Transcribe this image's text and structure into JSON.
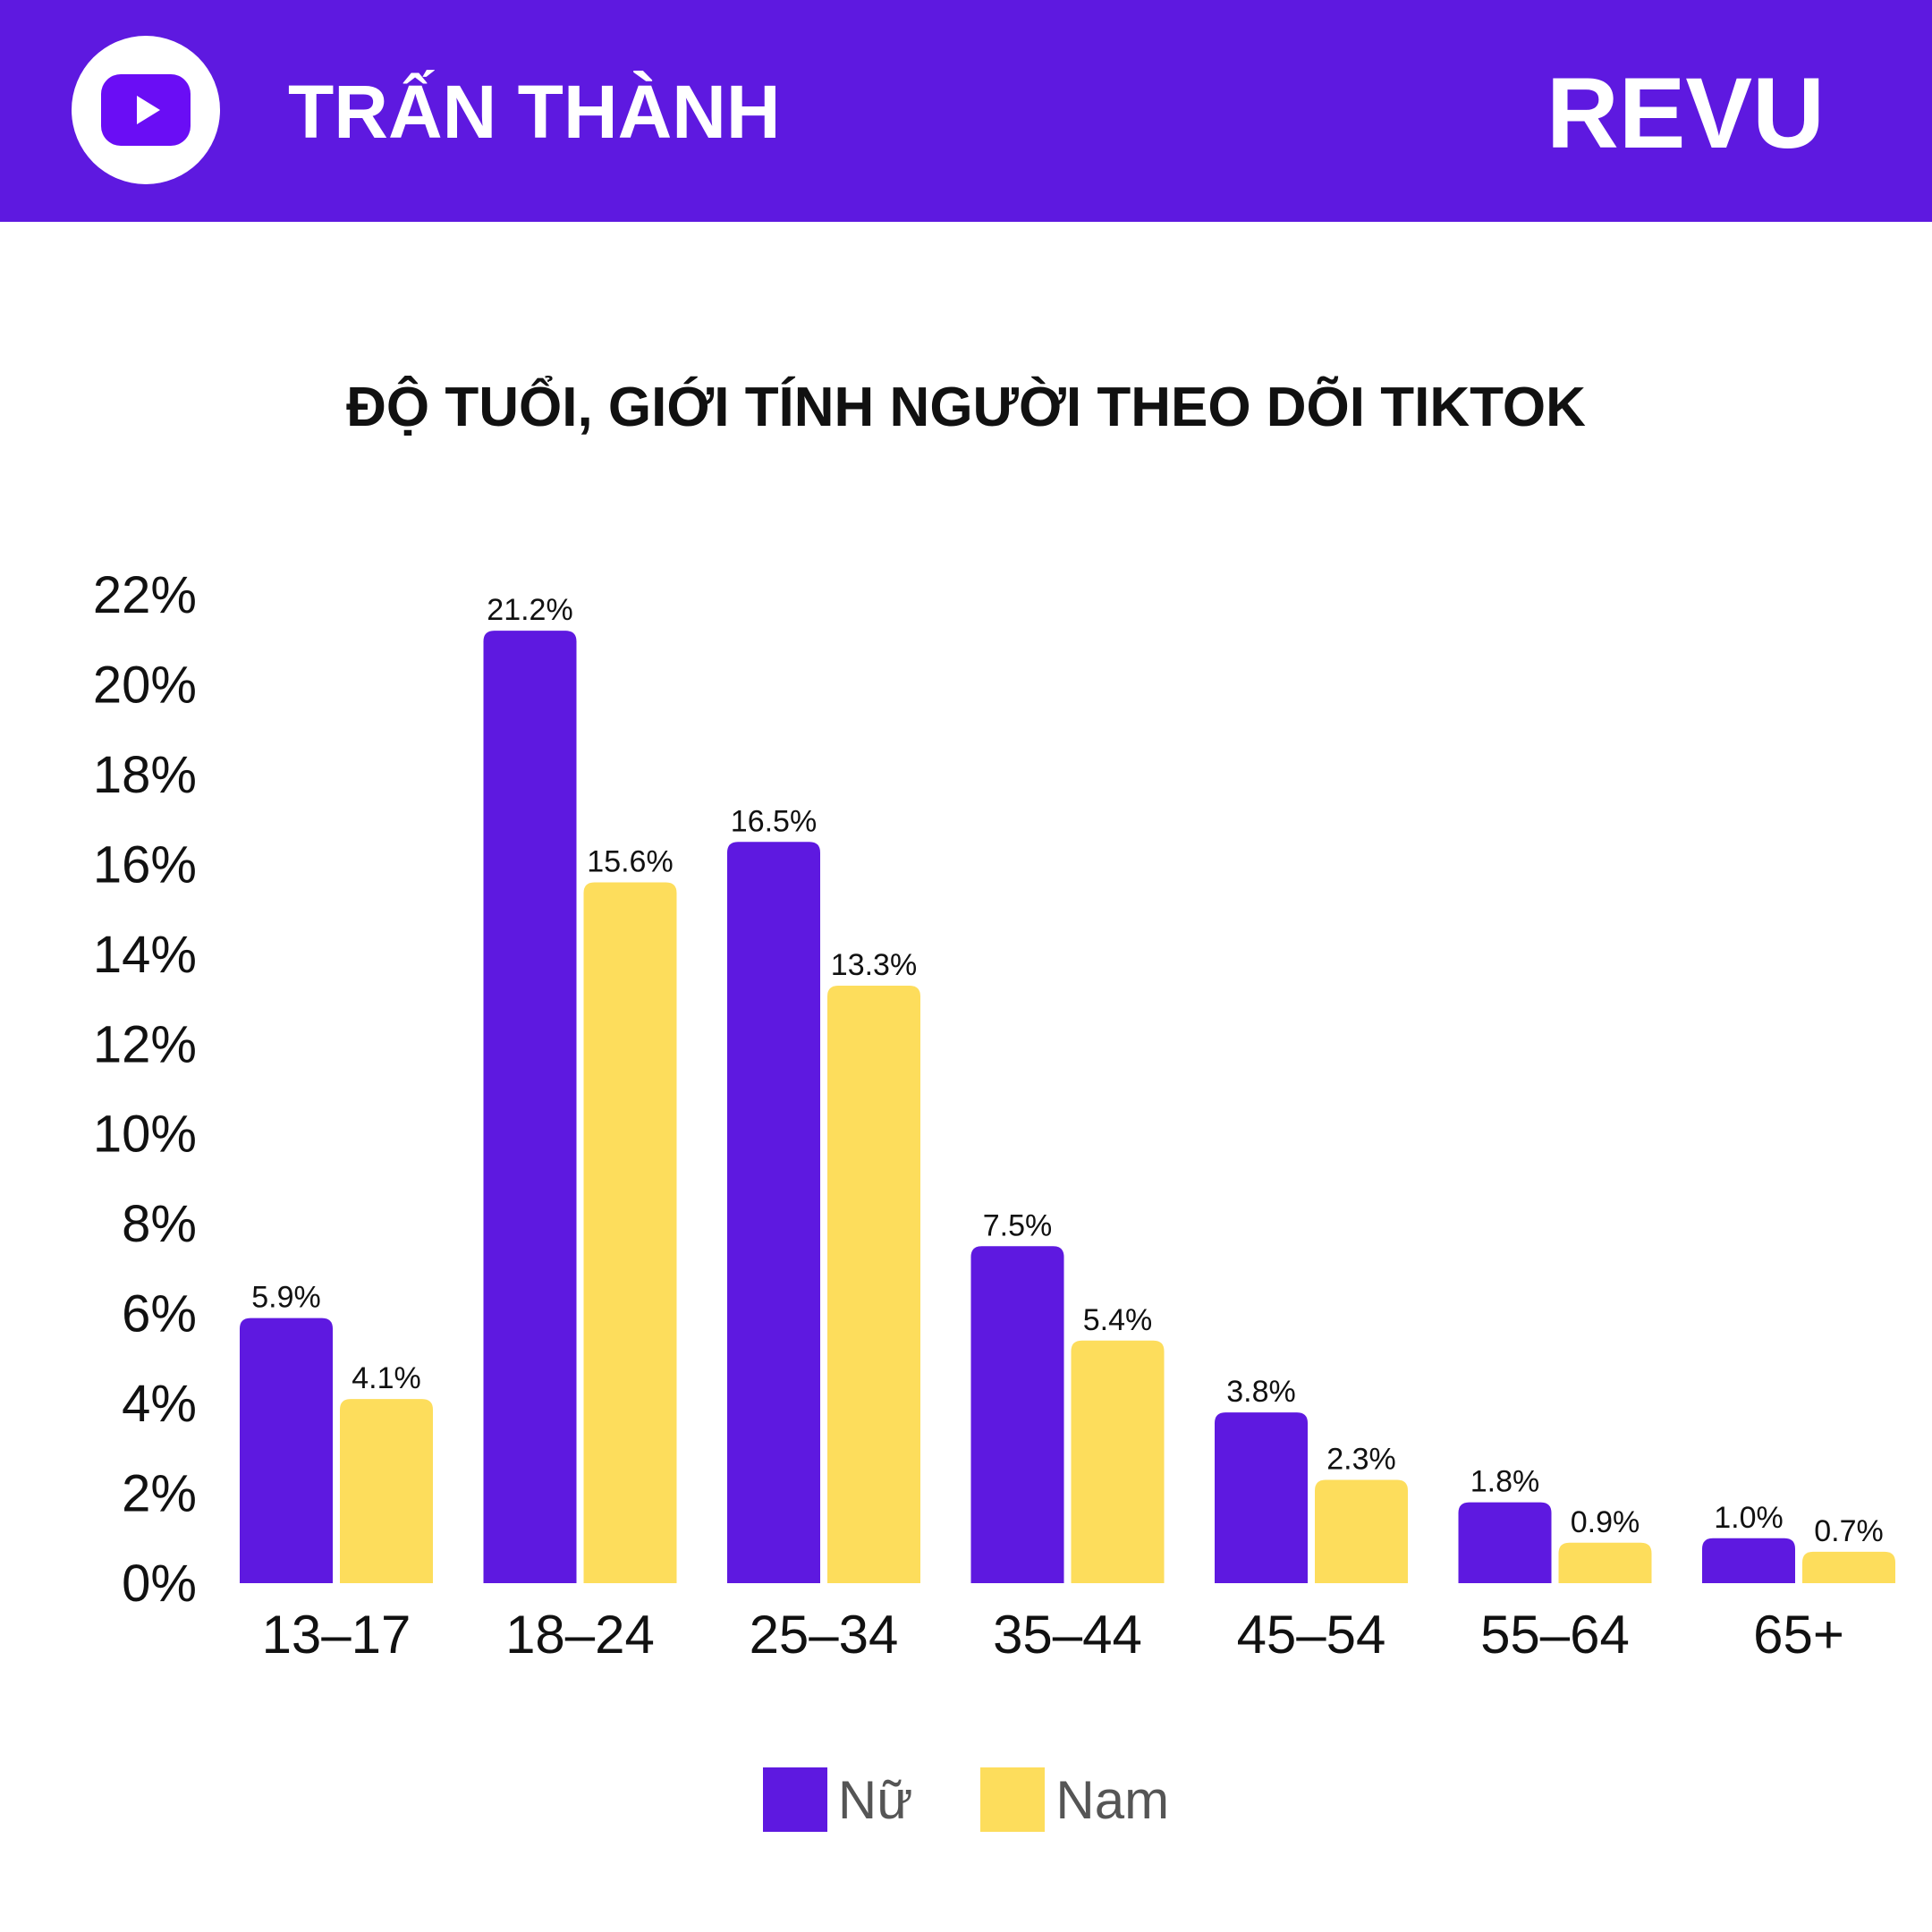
{
  "header": {
    "channel_name": "TRẤN THÀNH",
    "brand": "REVU",
    "icon": "youtube-icon"
  },
  "colors": {
    "header_bg": "#5e19e0",
    "nu": "#5e19e0",
    "nam": "#fddd5c"
  },
  "chart_data": {
    "type": "bar",
    "title": "ĐỘ TUỔI, GIỚI TÍNH NGƯỜI THEO DÕI TIKTOK",
    "categories": [
      "13–17",
      "18–24",
      "25–34",
      "35–44",
      "45–54",
      "55–64",
      "65+"
    ],
    "series": [
      {
        "name": "Nữ",
        "values": [
          5.9,
          21.2,
          16.5,
          7.5,
          3.8,
          1.8,
          1.0
        ],
        "labels": [
          "5.9%",
          "21.2%",
          "16.5%",
          "7.5%",
          "3.8%",
          "1.8%",
          "1.0%"
        ]
      },
      {
        "name": "Nam",
        "values": [
          4.1,
          15.6,
          13.3,
          5.4,
          2.3,
          0.9,
          0.7
        ],
        "labels": [
          "4.1%",
          "15.6%",
          "13.3%",
          "5.4%",
          "2.3%",
          "0.9%",
          "0.7%"
        ]
      }
    ],
    "ylim": [
      0,
      22
    ],
    "yticks": [
      "0%",
      "2%",
      "4%",
      "6%",
      "8%",
      "10%",
      "12%",
      "14%",
      "16%",
      "18%",
      "20%",
      "22%"
    ],
    "xlabel": "",
    "ylabel": "",
    "grid": false,
    "legend_position": "bottom-center"
  }
}
